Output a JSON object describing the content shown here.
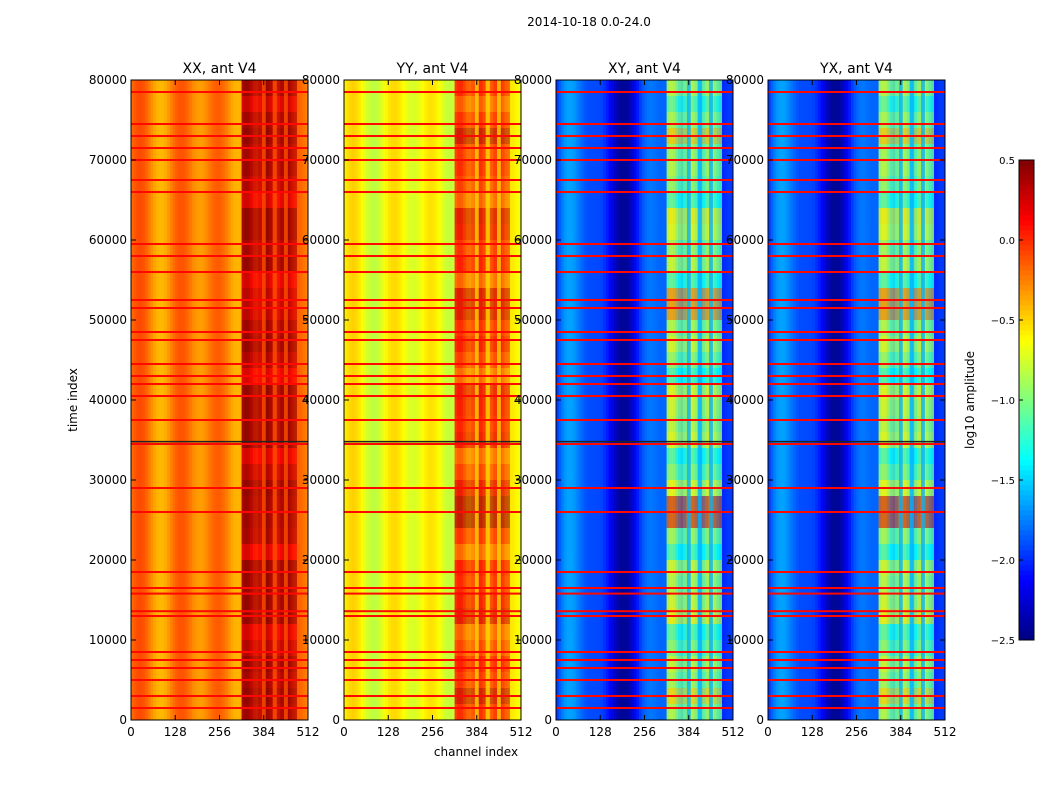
{
  "chart_data": {
    "type": "heatmap",
    "suptitle": "2014-10-18 0.0-24.0",
    "xlabel": "channel index",
    "ylabel": "time index",
    "xlim": [
      0,
      512
    ],
    "ylim": [
      0,
      80000
    ],
    "x_ticks": [
      "0",
      "128",
      "256",
      "384",
      "512"
    ],
    "y_ticks": [
      "0",
      "10000",
      "20000",
      "30000",
      "40000",
      "50000",
      "60000",
      "70000",
      "80000"
    ],
    "panels": [
      {
        "title": "XX, ant V4",
        "base_log_amplitude": -0.25
      },
      {
        "title": "YY, ant V4",
        "base_log_amplitude": -0.65
      },
      {
        "title": "XY, ant V4",
        "base_log_amplitude": -2.0
      },
      {
        "title": "YX, ant V4",
        "base_log_amplitude": -2.0
      }
    ],
    "colorbar": {
      "label": "log10 amplitude",
      "colormap": "jet",
      "range": [
        -2.5,
        0.5
      ],
      "ticks": [
        "0.5",
        "0.0",
        "−0.5",
        "−1.0",
        "−1.5",
        "−2.0",
        "−2.5"
      ]
    },
    "flagged_time_rows": [
      1500,
      3000,
      5000,
      6500,
      7500,
      8500,
      13000,
      13600,
      15800,
      16500,
      18500,
      26000,
      29000,
      34500,
      37500,
      40500,
      42000,
      43000,
      44500,
      47500,
      48500,
      51500,
      52500,
      56000,
      58000,
      59500,
      66000,
      67500,
      70000,
      71500,
      73000,
      74500,
      78500
    ],
    "high_amplitude_channel_range": [
      320,
      480
    ]
  }
}
